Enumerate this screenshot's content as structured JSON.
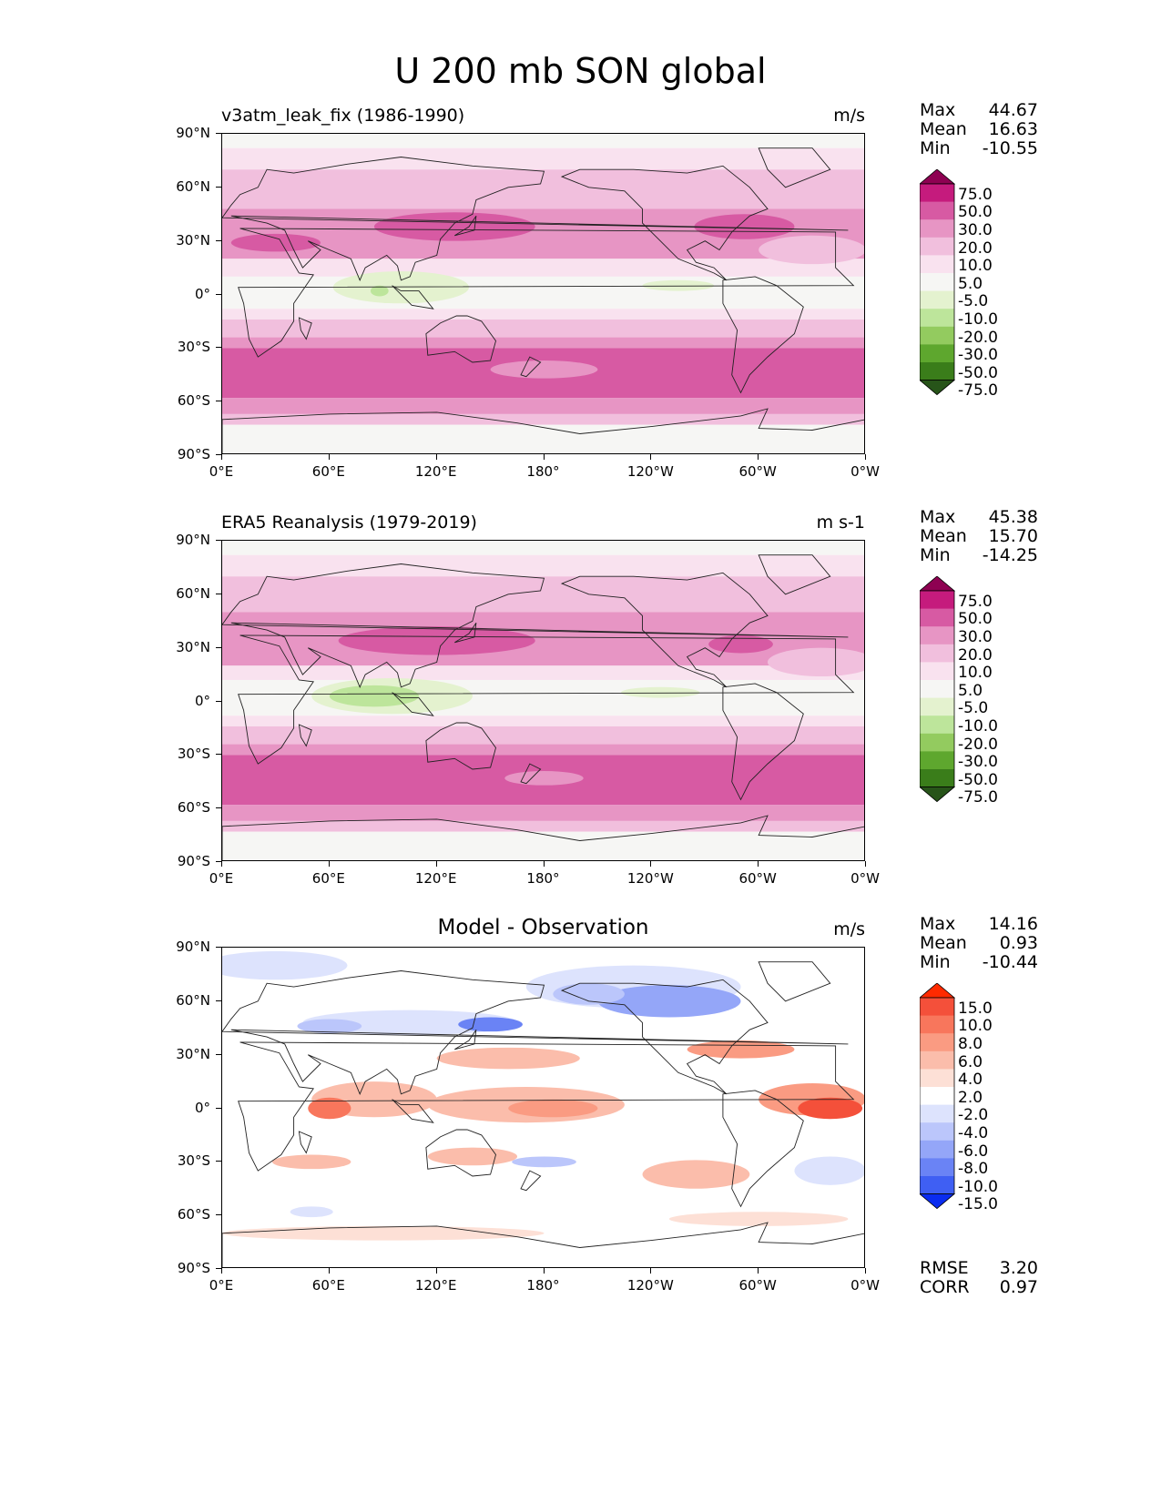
{
  "figure_title": "U 200 mb SON global",
  "axes": {
    "lat_ticks": [
      "90°N",
      "60°N",
      "30°N",
      "0°",
      "30°S",
      "60°S",
      "90°S"
    ],
    "lon_ticks": [
      "0°E",
      "60°E",
      "120°E",
      "180°",
      "120°W",
      "60°W",
      "0°W"
    ]
  },
  "chart_data": [
    {
      "type": "heatmap",
      "title": "v3atm_leak_fix (1986-1990)",
      "units": "m/s",
      "xlim": [
        0,
        360
      ],
      "ylim": [
        -90,
        90
      ],
      "stats": {
        "max_label": "Max",
        "max": "44.67",
        "mean_label": "Mean",
        "mean": "16.63",
        "min_label": "Min",
        "min": "-10.55"
      },
      "colorbar": {
        "levels": [
          "75.0",
          "50.0",
          "30.0",
          "20.0",
          "10.0",
          "5.0",
          "-5.0",
          "-10.0",
          "-20.0",
          "-30.0",
          "-50.0",
          "-75.0"
        ],
        "colors": [
          "#8e0152",
          "#c51b7d",
          "#d75aa3",
          "#e795c4",
          "#f1bfdd",
          "#f9e2ef",
          "#f6f6f4",
          "#e4f2cf",
          "#bde59b",
          "#93cb5f",
          "#5ea72e",
          "#3a7d1a",
          "#275419"
        ]
      },
      "bands": [
        {
          "lat_top": 90,
          "lat_bot": 82,
          "color": "#f6f6f4"
        },
        {
          "lat_top": 82,
          "lat_bot": 70,
          "color": "#f9e2ef"
        },
        {
          "lat_top": 70,
          "lat_bot": 48,
          "color": "#f1bfdd"
        },
        {
          "lat_top": 48,
          "lat_bot": 20,
          "color": "#e795c4"
        },
        {
          "lat_top": 20,
          "lat_bot": 10,
          "color": "#f9e2ef"
        },
        {
          "lat_top": 10,
          "lat_bot": -8,
          "color": "#f6f6f4"
        },
        {
          "lat_top": -8,
          "lat_bot": -14,
          "color": "#f9e2ef"
        },
        {
          "lat_top": -14,
          "lat_bot": -24,
          "color": "#f1bfdd"
        },
        {
          "lat_top": -24,
          "lat_bot": -30,
          "color": "#e795c4"
        },
        {
          "lat_top": -30,
          "lat_bot": -58,
          "color": "#d75aa3"
        },
        {
          "lat_top": -58,
          "lat_bot": -67,
          "color": "#e795c4"
        },
        {
          "lat_top": -67,
          "lat_bot": -73,
          "color": "#f1bfdd"
        },
        {
          "lat_top": -73,
          "lat_bot": -90,
          "color": "#f6f6f4"
        }
      ],
      "features": [
        {
          "lon": 130,
          "lat": 38,
          "rlon": 45,
          "rlat": 8,
          "color": "#d75aa3"
        },
        {
          "lon": 30,
          "lat": 29,
          "rlon": 25,
          "rlat": 5,
          "color": "#d75aa3"
        },
        {
          "lon": 292,
          "lat": 38,
          "rlon": 28,
          "rlat": 7,
          "color": "#d75aa3"
        },
        {
          "lon": 100,
          "lat": 4,
          "rlon": 38,
          "rlat": 9,
          "color": "#e4f2cf"
        },
        {
          "lon": 88,
          "lat": 2,
          "rlon": 5,
          "rlat": 3,
          "color": "#bde59b"
        },
        {
          "lon": 255,
          "lat": 5,
          "rlon": 20,
          "rlat": 3,
          "color": "#e4f2cf"
        },
        {
          "lon": 180,
          "lat": -42,
          "rlon": 30,
          "rlat": 5,
          "color": "#e795c4"
        },
        {
          "lon": 330,
          "lat": 25,
          "rlon": 30,
          "rlat": 8,
          "color": "#f1bfdd"
        }
      ]
    },
    {
      "type": "heatmap",
      "title": "ERA5 Reanalysis (1979-2019)",
      "units": "m s-1",
      "xlim": [
        0,
        360
      ],
      "ylim": [
        -90,
        90
      ],
      "stats": {
        "max_label": "Max",
        "max": "45.38",
        "mean_label": "Mean",
        "mean": "15.70",
        "min_label": "Min",
        "min": "-14.25"
      },
      "colorbar": {
        "levels": [
          "75.0",
          "50.0",
          "30.0",
          "20.0",
          "10.0",
          "5.0",
          "-5.0",
          "-10.0",
          "-20.0",
          "-30.0",
          "-50.0",
          "-75.0"
        ],
        "colors": [
          "#8e0152",
          "#c51b7d",
          "#d75aa3",
          "#e795c4",
          "#f1bfdd",
          "#f9e2ef",
          "#f6f6f4",
          "#e4f2cf",
          "#bde59b",
          "#93cb5f",
          "#5ea72e",
          "#3a7d1a",
          "#275419"
        ]
      },
      "bands": [
        {
          "lat_top": 90,
          "lat_bot": 82,
          "color": "#f6f6f4"
        },
        {
          "lat_top": 82,
          "lat_bot": 70,
          "color": "#f9e2ef"
        },
        {
          "lat_top": 70,
          "lat_bot": 50,
          "color": "#f1bfdd"
        },
        {
          "lat_top": 50,
          "lat_bot": 20,
          "color": "#e795c4"
        },
        {
          "lat_top": 20,
          "lat_bot": 12,
          "color": "#f9e2ef"
        },
        {
          "lat_top": 12,
          "lat_bot": -8,
          "color": "#f6f6f4"
        },
        {
          "lat_top": -8,
          "lat_bot": -14,
          "color": "#f9e2ef"
        },
        {
          "lat_top": -14,
          "lat_bot": -24,
          "color": "#f1bfdd"
        },
        {
          "lat_top": -24,
          "lat_bot": -30,
          "color": "#e795c4"
        },
        {
          "lat_top": -30,
          "lat_bot": -58,
          "color": "#d75aa3"
        },
        {
          "lat_top": -58,
          "lat_bot": -67,
          "color": "#e795c4"
        },
        {
          "lat_top": -67,
          "lat_bot": -73,
          "color": "#f1bfdd"
        },
        {
          "lat_top": -73,
          "lat_bot": -90,
          "color": "#f6f6f4"
        }
      ],
      "features": [
        {
          "lon": 120,
          "lat": 34,
          "rlon": 55,
          "rlat": 8,
          "color": "#d75aa3"
        },
        {
          "lon": 290,
          "lat": 32,
          "rlon": 18,
          "rlat": 5,
          "color": "#d75aa3"
        },
        {
          "lon": 95,
          "lat": 3,
          "rlon": 45,
          "rlat": 10,
          "color": "#e4f2cf"
        },
        {
          "lon": 85,
          "lat": 3,
          "rlon": 25,
          "rlat": 6,
          "color": "#bde59b"
        },
        {
          "lon": 245,
          "lat": 5,
          "rlon": 22,
          "rlat": 3,
          "color": "#e4f2cf"
        },
        {
          "lon": 180,
          "lat": -43,
          "rlon": 22,
          "rlat": 4,
          "color": "#e795c4"
        },
        {
          "lon": 335,
          "lat": 22,
          "rlon": 30,
          "rlat": 8,
          "color": "#f1bfdd"
        }
      ]
    },
    {
      "type": "heatmap",
      "title": "Model - Observation",
      "units": "m/s",
      "xlim": [
        0,
        360
      ],
      "ylim": [
        -90,
        90
      ],
      "stats": {
        "max_label": "Max",
        "max": "14.16",
        "mean_label": "Mean",
        "mean": "0.93",
        "min_label": "Min",
        "min": "-10.44"
      },
      "metrics": {
        "rmse_label": "RMSE",
        "rmse": "3.20",
        "corr_label": "CORR",
        "corr": "0.97"
      },
      "colorbar": {
        "levels": [
          "15.0",
          "10.0",
          "8.0",
          "6.0",
          "4.0",
          "2.0",
          "-2.0",
          "-4.0",
          "-6.0",
          "-8.0",
          "-10.0",
          "-15.0"
        ],
        "colors": [
          "#ff2a00",
          "#f4503a",
          "#f8765c",
          "#fa9b82",
          "#fbbdab",
          "#fde0d6",
          "#ffffff",
          "#dde3fd",
          "#bbc6fb",
          "#94a6f8",
          "#6a83f5",
          "#3f5ff3",
          "#0a2cf0"
        ]
      },
      "bands": [
        {
          "lat_top": 90,
          "lat_bot": -90,
          "color": "#ffffff"
        }
      ],
      "features": [
        {
          "lon": 30,
          "lat": 80,
          "rlon": 40,
          "rlat": 8,
          "color": "#dde3fd"
        },
        {
          "lon": 230,
          "lat": 68,
          "rlon": 60,
          "rlat": 12,
          "color": "#dde3fd"
        },
        {
          "lon": 250,
          "lat": 60,
          "rlon": 40,
          "rlat": 9,
          "color": "#94a6f8"
        },
        {
          "lon": 205,
          "lat": 64,
          "rlon": 20,
          "rlat": 6,
          "color": "#bbc6fb"
        },
        {
          "lon": 105,
          "lat": 48,
          "rlon": 60,
          "rlat": 7,
          "color": "#dde3fd"
        },
        {
          "lon": 150,
          "lat": 47,
          "rlon": 18,
          "rlat": 4,
          "color": "#6a83f5"
        },
        {
          "lon": 60,
          "lat": 46,
          "rlon": 18,
          "rlat": 4,
          "color": "#bbc6fb"
        },
        {
          "lon": 85,
          "lat": 5,
          "rlon": 35,
          "rlat": 10,
          "color": "#fbbdab"
        },
        {
          "lon": 60,
          "lat": 0,
          "rlon": 12,
          "rlat": 6,
          "color": "#f8765c"
        },
        {
          "lon": 170,
          "lat": 2,
          "rlon": 55,
          "rlat": 10,
          "color": "#fbbdab"
        },
        {
          "lon": 185,
          "lat": 0,
          "rlon": 25,
          "rlat": 5,
          "color": "#fa9b82"
        },
        {
          "lon": 330,
          "lat": 5,
          "rlon": 30,
          "rlat": 9,
          "color": "#fa9b82"
        },
        {
          "lon": 340,
          "lat": 0,
          "rlon": 18,
          "rlat": 6,
          "color": "#f4503a"
        },
        {
          "lon": 160,
          "lat": 28,
          "rlon": 40,
          "rlat": 6,
          "color": "#fbbdab"
        },
        {
          "lon": 290,
          "lat": 33,
          "rlon": 30,
          "rlat": 5,
          "color": "#fa9b82"
        },
        {
          "lon": 140,
          "lat": -27,
          "rlon": 25,
          "rlat": 5,
          "color": "#fbbdab"
        },
        {
          "lon": 180,
          "lat": -30,
          "rlon": 18,
          "rlat": 3,
          "color": "#bbc6fb"
        },
        {
          "lon": 265,
          "lat": -37,
          "rlon": 30,
          "rlat": 8,
          "color": "#fbbdab"
        },
        {
          "lon": 50,
          "lat": -30,
          "rlon": 22,
          "rlat": 4,
          "color": "#fbbdab"
        },
        {
          "lon": 340,
          "lat": -35,
          "rlon": 20,
          "rlat": 8,
          "color": "#dde3fd"
        },
        {
          "lon": 90,
          "lat": -70,
          "rlon": 90,
          "rlat": 4,
          "color": "#fde0d6"
        },
        {
          "lon": 300,
          "lat": -62,
          "rlon": 50,
          "rlat": 4,
          "color": "#fde0d6"
        },
        {
          "lon": 50,
          "lat": -58,
          "rlon": 12,
          "rlat": 3,
          "color": "#dde3fd"
        }
      ]
    }
  ]
}
